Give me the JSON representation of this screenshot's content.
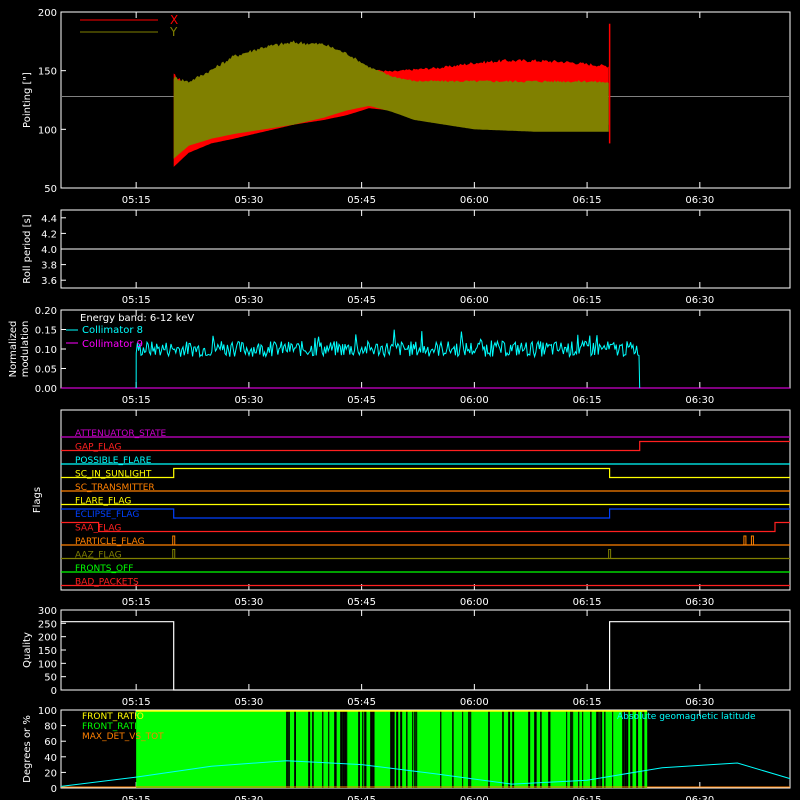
{
  "time_ticks": [
    "05:15",
    "05:30",
    "05:45",
    "06:00",
    "06:15",
    "06:30"
  ],
  "chart_data": [
    {
      "type": "line",
      "panel": "pointing",
      "ylabel": "Pointing [\"]",
      "ylim": [
        50,
        200
      ],
      "yticks": [
        50,
        100,
        150,
        200
      ],
      "x_range": [
        "05:05",
        "06:42"
      ],
      "series": [
        {
          "name": "X",
          "color": "#ff0000",
          "envelope_x": [
            "05:20",
            "05:22",
            "05:25",
            "05:28",
            "05:32",
            "05:36",
            "05:40",
            "05:43",
            "05:46",
            "05:49",
            "05:52",
            "05:56",
            "06:00",
            "06:04",
            "06:08",
            "06:12",
            "06:15",
            "06:18"
          ],
          "upper": [
            148,
            138,
            150,
            160,
            168,
            172,
            170,
            162,
            152,
            150,
            152,
            154,
            158,
            160,
            160,
            159,
            157,
            155
          ],
          "lower": [
            68,
            80,
            88,
            92,
            98,
            104,
            108,
            112,
            118,
            116,
            112,
            108,
            104,
            102,
            102,
            102,
            102,
            104
          ]
        },
        {
          "name": "Y",
          "color": "#808000",
          "envelope_x": [
            "05:20",
            "05:22",
            "05:25",
            "05:28",
            "05:32",
            "05:36",
            "05:40",
            "05:43",
            "05:46",
            "05:49",
            "05:52",
            "05:56",
            "06:00",
            "06:04",
            "06:08",
            "06:12",
            "06:15",
            "06:18"
          ],
          "upper": [
            146,
            142,
            152,
            164,
            172,
            176,
            174,
            166,
            154,
            146,
            142,
            142,
            142,
            142,
            142,
            142,
            142,
            141
          ],
          "lower": [
            75,
            86,
            92,
            96,
            100,
            104,
            110,
            116,
            120,
            115,
            108,
            104,
            100,
            99,
            98,
            98,
            98,
            98
          ]
        }
      ],
      "reference_level": 128,
      "reference_color": "#808080"
    },
    {
      "type": "line",
      "panel": "roll-period",
      "ylabel": "Roll period [s]",
      "ylim": [
        3.5,
        4.5
      ],
      "yticks": [
        "3.6",
        "3.8",
        "4.0",
        "4.2",
        "4.4"
      ],
      "series": [
        {
          "name": "",
          "color": "#ffffff",
          "x": [
            "05:05",
            "06:42"
          ],
          "values": [
            4.0,
            4.0
          ]
        }
      ]
    },
    {
      "type": "line",
      "panel": "modulation",
      "ylabel_lines": [
        "Normalized",
        "modulation"
      ],
      "ylim": [
        0,
        0.2
      ],
      "yticks": [
        "0.00",
        "0.05",
        "0.10",
        "0.15",
        "0.20"
      ],
      "legend_title": "Energy band: 6-12 keV",
      "series": [
        {
          "name": "Collimator 8",
          "color": "#00ffff",
          "x_range": [
            "05:15",
            "06:22"
          ],
          "mean": 0.1,
          "spread": 0.02
        },
        {
          "name": "Collimator 9",
          "color": "#ff00ff",
          "x_range": [
            "05:05",
            "06:42"
          ],
          "mean": 0.0,
          "spread": 0.0
        }
      ]
    },
    {
      "type": "line",
      "panel": "flags",
      "ylabel": "Flags",
      "flags": [
        {
          "name": "ATTENUATOR_STATE",
          "color": "#cc00cc",
          "segments": [
            [
              0,
              "05:05",
              "06:42"
            ]
          ]
        },
        {
          "name": "GAP_FLAG",
          "color": "#ff2020",
          "segments": [
            [
              0,
              "05:05",
              "06:22"
            ],
            [
              1,
              "06:22",
              "06:42"
            ]
          ]
        },
        {
          "name": "POSSIBLE_FLARE",
          "color": "#00ffff",
          "segments": [
            [
              0,
              "05:05",
              "06:42"
            ]
          ]
        },
        {
          "name": "SC_IN_SUNLIGHT",
          "color": "#ffff00",
          "segments": [
            [
              0,
              "05:05",
              "05:20"
            ],
            [
              1,
              "05:20",
              "06:18"
            ],
            [
              0,
              "06:18",
              "06:42"
            ]
          ]
        },
        {
          "name": "SC_TRANSMITTER",
          "color": "#ff8000",
          "segments": [
            [
              0,
              "05:05",
              "06:42"
            ]
          ]
        },
        {
          "name": "FLARE_FLAG",
          "color": "#ffff00",
          "segments": [
            [
              0,
              "05:05",
              "06:42"
            ]
          ]
        },
        {
          "name": "ECLIPSE_FLAG",
          "color": "#0040ff",
          "segments": [
            [
              1,
              "05:05",
              "05:20"
            ],
            [
              0,
              "05:20",
              "06:18"
            ],
            [
              1,
              "06:18",
              "06:42"
            ]
          ]
        },
        {
          "name": "SAA_FLAG",
          "color": "#ff2020",
          "segments": [
            [
              1,
              "05:05",
              "05:10"
            ],
            [
              0,
              "05:10",
              "06:40"
            ],
            [
              1,
              "06:40",
              "06:42"
            ]
          ]
        },
        {
          "name": "PARTICLE_FLAG",
          "color": "#ff8000",
          "segments": [
            [
              0,
              "05:05",
              "06:42"
            ]
          ],
          "spikes": [
            "05:20",
            "06:36",
            "06:37"
          ]
        },
        {
          "name": "AAZ_FLAG",
          "color": "#808000",
          "segments": [
            [
              0,
              "05:05",
              "06:42"
            ]
          ],
          "spikes": [
            "05:20",
            "06:18"
          ]
        },
        {
          "name": "FRONTS_OFF",
          "color": "#00ff00",
          "segments": [
            [
              0,
              "05:05",
              "06:42"
            ]
          ]
        },
        {
          "name": "BAD_PACKETS",
          "color": "#ff2020",
          "segments": [
            [
              0,
              "05:05",
              "06:42"
            ]
          ]
        }
      ]
    },
    {
      "type": "line",
      "panel": "quality",
      "ylabel": "Quality",
      "ylim": [
        0,
        300
      ],
      "yticks": [
        "0",
        "50",
        "100",
        "150",
        "200",
        "250",
        "300"
      ],
      "series": [
        {
          "name": "",
          "color": "#ffffff",
          "x": [
            "05:05",
            "05:20",
            "05:20",
            "06:18",
            "06:18",
            "06:42"
          ],
          "values": [
            256,
            256,
            0,
            0,
            256,
            256
          ]
        }
      ]
    },
    {
      "type": "area",
      "panel": "ratios",
      "ylabel": "Degrees or %",
      "ylim": [
        0,
        100
      ],
      "yticks": [
        "0",
        "20",
        "40",
        "60",
        "80",
        "100"
      ],
      "legend": [
        {
          "name": "FRONT_RATIO",
          "color": "#ffff00"
        },
        {
          "name": "FRONT_RATIO_>25",
          "color": "#00ff00"
        },
        {
          "name": "MAX_DET_VS_TOT",
          "color": "#ff8000"
        }
      ],
      "annotation": {
        "text": "Absolute geomagnetic latitude",
        "color": "#00ffff"
      },
      "fill_range": [
        "05:15",
        "06:23"
      ],
      "front_ratio_level": 100,
      "latitude_curve": {
        "x": [
          "05:05",
          "05:15",
          "05:25",
          "05:35",
          "05:45",
          "05:55",
          "06:05",
          "06:15",
          "06:25",
          "06:35",
          "06:42"
        ],
        "values": [
          2,
          14,
          28,
          35,
          30,
          18,
          5,
          10,
          26,
          32,
          12
        ]
      }
    }
  ]
}
